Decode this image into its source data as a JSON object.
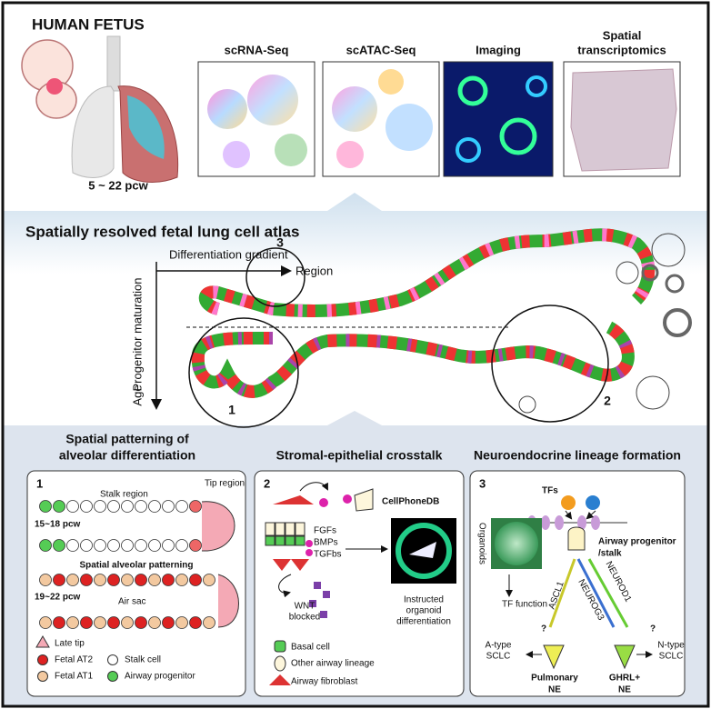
{
  "header": {
    "title": "HUMAN FETUS",
    "age_range": "5 ~ 22 pcw"
  },
  "methods": [
    [
      "scRNA-Seq"
    ],
    [
      "scATAC-Seq"
    ],
    [
      "Imaging"
    ],
    [
      "Spatial",
      "transcriptomics"
    ]
  ],
  "atlas": {
    "title": "Spatially resolved fetal lung cell atlas",
    "x_axis_title": "Differentiation gradient",
    "x_axis_label": "Region",
    "y_axis_title": "Progenitor maturation",
    "y_axis_label": "Age",
    "regions": [
      "1",
      "2",
      "3"
    ]
  },
  "panels": [
    {
      "title": [
        "Spatial patterning of",
        "alveolar differentiation"
      ],
      "number": "1",
      "labels": [
        "Stalk region",
        "Tip region",
        "15~18 pcw",
        "Spatial alveolar patterning",
        "19~22 pcw",
        "Air sac"
      ],
      "legend": [
        "Late tip",
        "Fetal AT2",
        "Stalk cell",
        "Fetal AT1",
        "Airway progenitor"
      ]
    },
    {
      "title": [
        "Stromal-epithelial crosstalk"
      ],
      "number": "2",
      "labels": [
        "CellPhoneDB",
        "FGFs",
        "BMPs",
        "TGFbs",
        "WNT",
        "blocked",
        "Instructed",
        "organoid",
        "differentiation"
      ],
      "legend": [
        "Basal cell",
        "Other airway lineage",
        "Airway fibroblast"
      ]
    },
    {
      "title": [
        "Neuroendocrine lineage formation"
      ],
      "number": "3",
      "labels": [
        "TFs",
        "Organoids",
        "TF function",
        "Airway progenitor",
        "/stalk",
        "ASCL1",
        "NEUROG3",
        "NEUROD1",
        "?",
        "?",
        "A-type",
        "SCLC",
        "N-type",
        "SCLC",
        "Pulmonary",
        "NE",
        "GHRL+",
        "NE"
      ]
    }
  ]
}
